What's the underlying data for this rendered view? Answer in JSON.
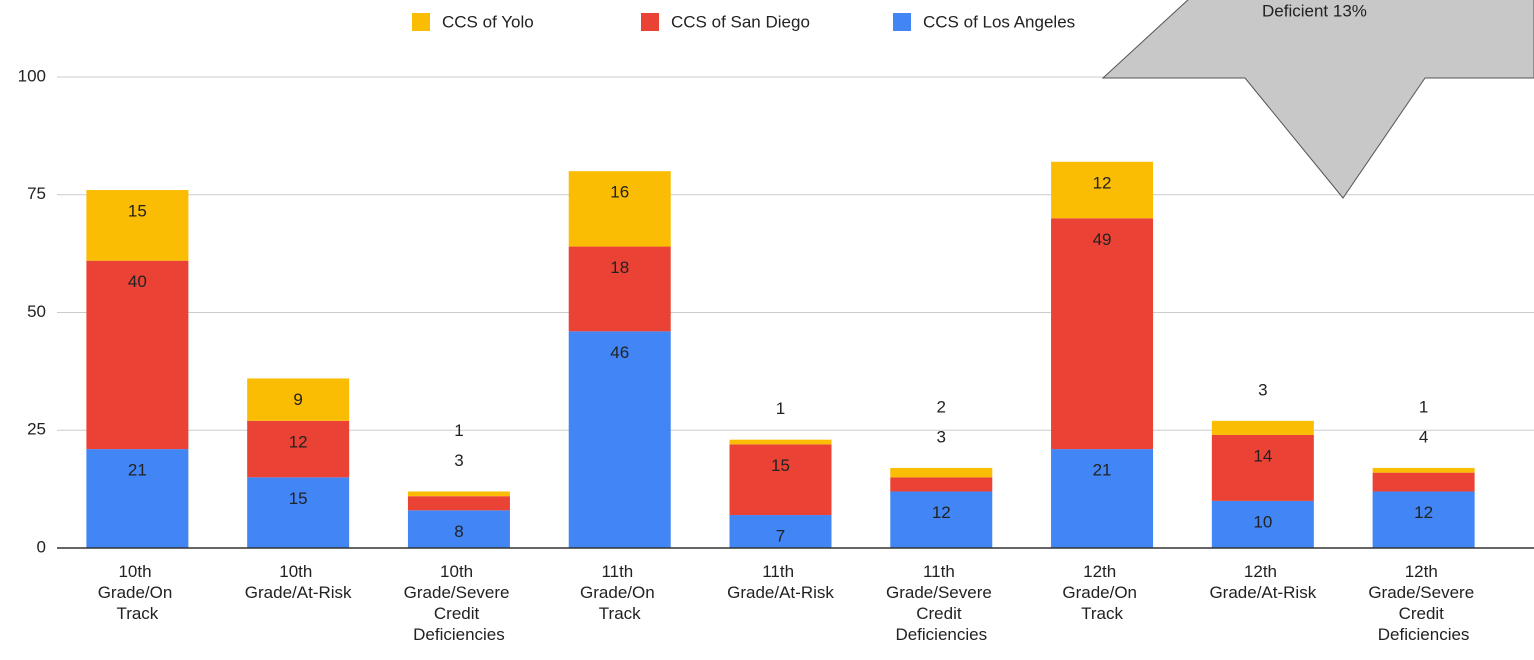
{
  "chart_data": {
    "type": "stacked_bar",
    "categories": [
      "10th Grade/On Track",
      "10th Grade/At-Risk",
      "10th Grade/Severe Credit Deficiencies",
      "11th Grade/On Track",
      "11th Grade/At-Risk",
      "11th Grade/Severe Credit Deficiencies",
      "12th Grade/On Track",
      "12th Grade/At-Risk",
      "12th Grade/Severe Credit Deficiencies"
    ],
    "series": [
      {
        "name": "CCS of Los Angeles",
        "color": "#4285f4",
        "values": [
          21,
          15,
          8,
          46,
          7,
          12,
          21,
          10,
          12
        ]
      },
      {
        "name": "CCS of San Diego",
        "color": "#ea4335",
        "values": [
          40,
          12,
          3,
          18,
          15,
          3,
          49,
          14,
          4
        ]
      },
      {
        "name": "CCS of Yolo",
        "color": "#fbbc04",
        "values": [
          15,
          9,
          1,
          16,
          1,
          2,
          12,
          3,
          1
        ]
      }
    ],
    "ylim": [
      0,
      100
    ],
    "yticks": [
      0,
      25,
      50,
      75,
      100
    ],
    "grid": true,
    "legend": "top",
    "annotation": "Deficient 13%"
  }
}
